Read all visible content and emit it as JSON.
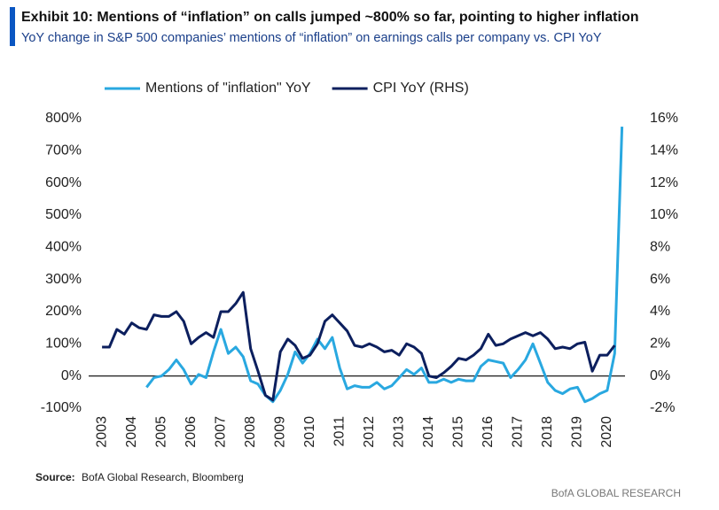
{
  "chart_data": {
    "type": "line",
    "title": "Exhibit 10: Mentions of “inflation” on calls jumped ~800% so far, pointing to higher inflation",
    "subtitle": "YoY change in S&P 500 companies’ mentions of “inflation” on earnings calls per company vs. CPI YoY",
    "x": [
      2003,
      2003.25,
      2003.5,
      2003.75,
      2004,
      2004.25,
      2004.5,
      2004.75,
      2005,
      2005.25,
      2005.5,
      2005.75,
      2006,
      2006.25,
      2006.5,
      2006.75,
      2007,
      2007.25,
      2007.5,
      2007.75,
      2008,
      2008.25,
      2008.5,
      2008.75,
      2009,
      2009.25,
      2009.5,
      2009.75,
      2010,
      2010.25,
      2010.5,
      2010.75,
      2011,
      2011.25,
      2011.5,
      2011.75,
      2012,
      2012.25,
      2012.5,
      2012.75,
      2013,
      2013.25,
      2013.5,
      2013.75,
      2014,
      2014.25,
      2014.5,
      2014.75,
      2015,
      2015.25,
      2015.5,
      2015.75,
      2016,
      2016.25,
      2016.5,
      2016.75,
      2017,
      2017.25,
      2017.5,
      2017.75,
      2018,
      2018.25,
      2018.5,
      2018.75,
      2019,
      2019.25,
      2019.5,
      2019.75,
      2020,
      2020.25,
      2020.5
    ],
    "series": [
      {
        "name": "Mentions of \"inflation\" YoY",
        "color": "#29a8e0",
        "values": [
          null,
          null,
          null,
          null,
          null,
          null,
          -35,
          -5,
          0,
          20,
          50,
          20,
          -25,
          5,
          -5,
          75,
          145,
          70,
          90,
          60,
          -15,
          -25,
          -60,
          -80,
          -45,
          5,
          75,
          40,
          70,
          115,
          85,
          120,
          25,
          -40,
          -30,
          -35,
          -35,
          -20,
          -40,
          -30,
          -5,
          20,
          5,
          25,
          -20,
          -20,
          -10,
          -20,
          -10,
          -15,
          -15,
          30,
          50,
          45,
          40,
          -5,
          20,
          50,
          100,
          40,
          -20,
          -45,
          -55,
          -40,
          -35,
          -80,
          -70,
          -55,
          -45,
          70,
          775
        ]
      },
      {
        "name": "CPI YoY (RHS)",
        "color": "#0c1f5e",
        "axis": "y2",
        "values": [
          1.8,
          1.8,
          2.9,
          2.6,
          3.3,
          3.0,
          2.9,
          3.8,
          3.7,
          3.7,
          4.0,
          3.4,
          2.0,
          2.4,
          2.7,
          2.4,
          4.0,
          4.0,
          4.5,
          5.2,
          1.7,
          0.3,
          -1.2,
          -1.5,
          1.5,
          2.3,
          1.9,
          1.1,
          1.3,
          2.0,
          3.4,
          3.8,
          3.3,
          2.8,
          1.9,
          1.8,
          2.0,
          1.8,
          1.5,
          1.6,
          1.3,
          2.0,
          1.8,
          1.4,
          0.0,
          -0.1,
          0.2,
          0.6,
          1.1,
          1.0,
          1.3,
          1.7,
          2.6,
          1.9,
          2.0,
          2.3,
          2.5,
          2.7,
          2.5,
          2.7,
          2.3,
          1.7,
          1.8,
          1.7,
          2.0,
          2.1,
          0.3,
          1.3,
          1.3,
          1.9,
          null
        ]
      }
    ],
    "xlim": [
      2002.7,
      2020.6
    ],
    "xticks": [
      2003,
      2004,
      2005,
      2006,
      2007,
      2008,
      2009,
      2010,
      2011,
      2012,
      2013,
      2014,
      2015,
      2016,
      2017,
      2018,
      2019,
      2020
    ],
    "ylim": [
      -100,
      800
    ],
    "yticks": [
      {
        "value": -100,
        "label": "-100%"
      },
      {
        "value": 0,
        "label": "0%"
      },
      {
        "value": 100,
        "label": "100%"
      },
      {
        "value": 200,
        "label": "200%"
      },
      {
        "value": 300,
        "label": "300%"
      },
      {
        "value": 400,
        "label": "400%"
      },
      {
        "value": 500,
        "label": "500%"
      },
      {
        "value": 600,
        "label": "600%"
      },
      {
        "value": 700,
        "label": "700%"
      },
      {
        "value": 800,
        "label": "800%"
      }
    ],
    "y2lim": [
      -2,
      16
    ],
    "y2ticks": [
      {
        "value": -2,
        "label": "-2%"
      },
      {
        "value": 0,
        "label": "0%"
      },
      {
        "value": 2,
        "label": "2%"
      },
      {
        "value": 4,
        "label": "4%"
      },
      {
        "value": 6,
        "label": "6%"
      },
      {
        "value": 8,
        "label": "8%"
      },
      {
        "value": 10,
        "label": "10%"
      },
      {
        "value": 12,
        "label": "12%"
      },
      {
        "value": 14,
        "label": "14%"
      },
      {
        "value": 16,
        "label": "16%"
      }
    ],
    "grid": false,
    "legend": "top",
    "source_label": "Source:",
    "source": "BofA Global Research, Bloomberg",
    "brand": "BofA GLOBAL RESEARCH"
  }
}
